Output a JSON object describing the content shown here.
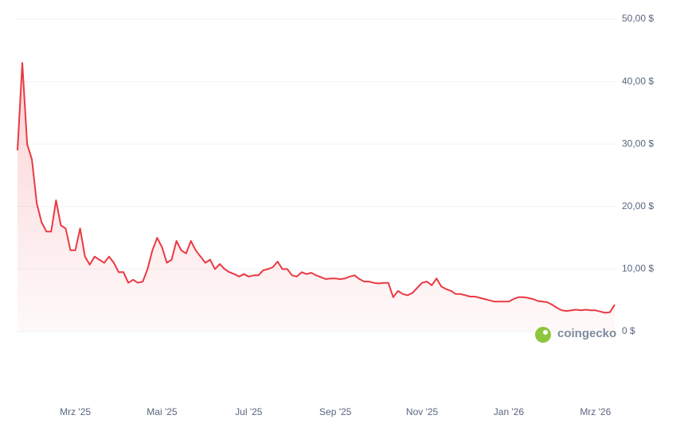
{
  "chart_data": {
    "type": "line",
    "categories": [
      null,
      null,
      null,
      null,
      null,
      null,
      null,
      null,
      null,
      null,
      null,
      null,
      "Mrz '25",
      null,
      null,
      null,
      null,
      null,
      null,
      null,
      null,
      null,
      null,
      null,
      null,
      null,
      null,
      null,
      null,
      null,
      "Mai '25",
      null,
      null,
      null,
      null,
      null,
      null,
      null,
      null,
      null,
      null,
      null,
      null,
      null,
      null,
      null,
      null,
      null,
      "Jul '25",
      null,
      null,
      null,
      null,
      null,
      null,
      null,
      null,
      null,
      null,
      null,
      null,
      null,
      null,
      null,
      null,
      null,
      "Sep '25",
      null,
      null,
      null,
      null,
      null,
      null,
      null,
      null,
      null,
      null,
      null,
      null,
      null,
      null,
      null,
      null,
      null,
      "Nov '25",
      null,
      null,
      null,
      null,
      null,
      null,
      null,
      null,
      null,
      null,
      null,
      null,
      null,
      null,
      null,
      null,
      null,
      "Jan '26",
      null,
      null,
      null,
      null,
      null,
      null,
      null,
      null,
      null,
      null,
      null,
      null,
      null,
      null,
      null,
      null,
      null,
      "Mrz '26",
      null,
      null,
      null,
      null
    ],
    "series": [
      {
        "color": "#ea3943",
        "values": [
          29,
          43,
          30,
          27.5,
          20.5,
          17.5,
          16,
          16,
          21,
          17,
          16.5,
          13,
          13,
          16.5,
          12,
          10.7,
          12,
          11.5,
          11,
          12,
          11,
          9.5,
          9.5,
          7.8,
          8.3,
          7.8,
          8,
          10,
          13,
          15,
          13.5,
          11,
          11.5,
          14.5,
          13,
          12.5,
          14.5,
          13,
          12,
          11,
          11.5,
          10,
          10.8,
          10,
          9.5,
          9.2,
          8.8,
          9.2,
          8.8,
          9,
          9,
          9.8,
          10,
          10.3,
          11.2,
          10,
          10,
          9,
          8.8,
          9.5,
          9.2,
          9.4,
          9,
          8.7,
          8.4,
          8.5,
          8.5,
          8.4,
          8.5,
          8.8,
          9,
          8.4,
          8,
          8,
          7.8,
          7.7,
          7.8,
          7.8,
          5.5,
          6.5,
          6,
          5.8,
          6.2,
          7,
          7.8,
          8,
          7.4,
          8.5,
          7.2,
          6.8,
          6.5,
          6,
          6,
          5.8,
          5.6,
          5.6,
          5.4,
          5.2,
          5,
          4.8,
          4.8,
          4.8,
          4.8,
          5.2,
          5.5,
          5.5,
          5.4,
          5.2,
          4.9,
          4.8,
          4.7,
          4.3,
          3.8,
          3.4,
          3.3,
          3.4,
          3.5,
          3.4,
          3.5,
          3.4,
          3.4,
          3.2,
          3.0,
          3.1,
          4.3
        ]
      }
    ],
    "ylim": [
      0,
      50
    ],
    "yticks": [
      {
        "value": 0,
        "label": "0 $"
      },
      {
        "value": 10,
        "label": "10,00 $"
      },
      {
        "value": 20,
        "label": "20,00 $"
      },
      {
        "value": 30,
        "label": "30,00 $"
      },
      {
        "value": 40,
        "label": "40,00 $"
      },
      {
        "value": 50,
        "label": "50,00 $"
      }
    ],
    "grid": true
  },
  "watermark": "coingecko"
}
